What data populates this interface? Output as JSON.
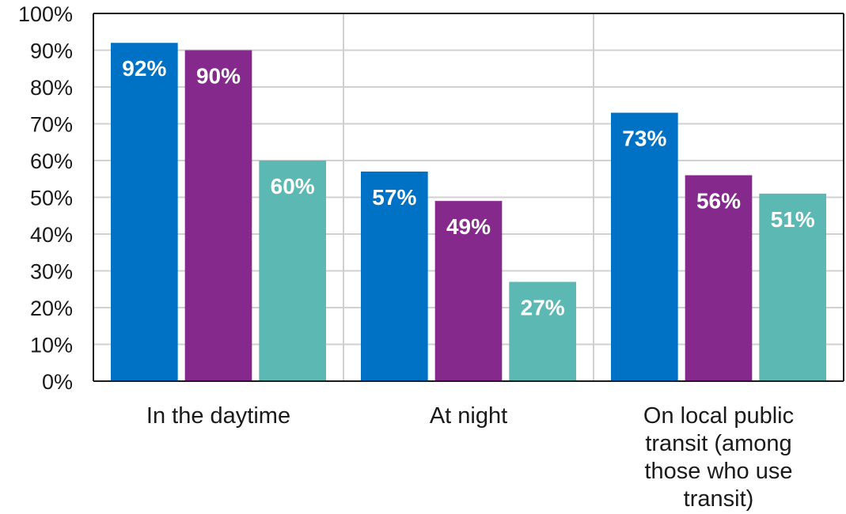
{
  "chart_data": {
    "type": "bar",
    "categories": [
      [
        "In the daytime"
      ],
      [
        "At night"
      ],
      [
        "On local public",
        "transit (among",
        "those who use",
        "transit)"
      ]
    ],
    "series": [
      {
        "values": [
          92,
          57,
          73
        ],
        "color": "#0072C6"
      },
      {
        "values": [
          90,
          49,
          56
        ],
        "color": "#85298C"
      },
      {
        "values": [
          60,
          27,
          51
        ],
        "color": "#5BB8B2"
      }
    ],
    "data_labels": [
      [
        "92%",
        "57%",
        "73%"
      ],
      [
        "90%",
        "49%",
        "56%"
      ],
      [
        "60%",
        "27%",
        "51%"
      ]
    ],
    "yticks": [
      "0%",
      "10%",
      "20%",
      "30%",
      "40%",
      "50%",
      "60%",
      "70%",
      "80%",
      "90%",
      "100%"
    ],
    "ylim": [
      0,
      100
    ],
    "grid": true,
    "legend": false,
    "title": "",
    "xlabel": "",
    "ylabel": ""
  }
}
